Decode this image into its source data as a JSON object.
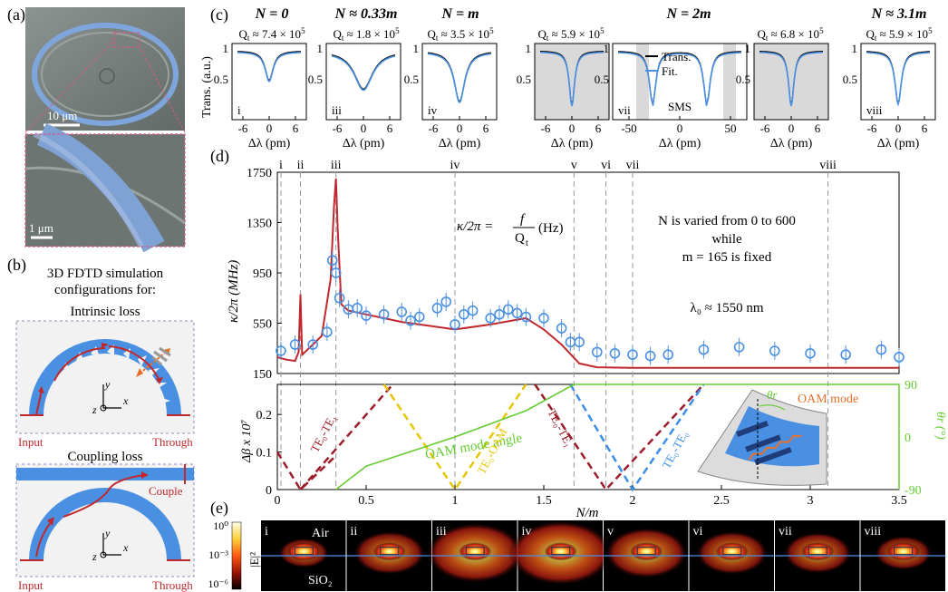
{
  "panel_letters": [
    "(a)",
    "(b)",
    "(c)",
    "(d)",
    "(e)"
  ],
  "panel_a": {
    "scale_top": "10 μm",
    "scale_bottom": "1 μm"
  },
  "panel_b": {
    "heading_line1": "3D FDTD simulation",
    "heading_line2": "configurations for:",
    "intrinsic_title": "Intrinsic loss",
    "coupling_title": "Coupling loss",
    "input_label": "Input",
    "through_label": "Through",
    "couple_label": "Couple",
    "axis_x": "x",
    "axis_y": "y",
    "axis_z": "z"
  },
  "panel_c": {
    "groups": [
      {
        "title": "N = 0",
        "q": "Q",
        "qsub": "t",
        "qval": " ≈ 7.4 × 10",
        "qexp": "5",
        "roman": "i"
      },
      {
        "title": "N ≈ 0.33m",
        "q": "Q",
        "qsub": "t",
        "qval": " ≈ 1.8 × 10",
        "qexp": "5",
        "roman": "iii"
      },
      {
        "title": "N = m",
        "q": "Q",
        "qsub": "t",
        "qval": " ≈ 3.5 × 10",
        "qexp": "5",
        "roman": "iv"
      },
      {
        "title": "N = 2m",
        "q": "Q",
        "qsub": "t",
        "qval": " ≈ 5.9 × 10",
        "qexp": "5",
        "roman": "vii"
      },
      {
        "title": "",
        "q": "Q",
        "qsub": "t",
        "qval": " ≈ 6.8 × 10",
        "qexp": "5",
        "roman": ""
      },
      {
        "title": "N ≈ 3.1m",
        "q": "Q",
        "qsub": "t",
        "qval": " ≈ 5.9 × 10",
        "qexp": "5",
        "roman": "viii"
      }
    ],
    "ylabel": "Trans. (a.u.)",
    "xlabel": "Δλ (pm)",
    "yticks": [
      "1",
      "0.5"
    ],
    "xticks_small": [
      "-6",
      "0",
      "6"
    ],
    "xticks_wide": [
      "-50",
      "0",
      "50"
    ],
    "legend_trans": "Trans.",
    "legend_fit": "Fit.",
    "sms_label": "SMS",
    "trans_color": "#000000",
    "fit_color": "#4a90e2"
  },
  "panel_d": {
    "ylabel": "κ/2π (MHz)",
    "yticks": [
      "150",
      "550",
      "950",
      "1350",
      "1750"
    ],
    "roman_markers": [
      {
        "label": "i",
        "x": 0.0
      },
      {
        "label": "ii",
        "x": 0.13
      },
      {
        "label": "iii",
        "x": 0.33
      },
      {
        "label": "iv",
        "x": 1.0
      },
      {
        "label": "v",
        "x": 1.67
      },
      {
        "label": "vi",
        "x": 1.85
      },
      {
        "label": "vii",
        "x": 2.0
      },
      {
        "label": "viii",
        "x": 3.1
      }
    ],
    "formula_lhs": "κ/2π =",
    "formula_num": "f",
    "formula_den": "Q",
    "formula_den_sub": "t",
    "formula_unit": "(Hz)",
    "note_line1": "N is varied from 0 to 600",
    "note_line2": "while",
    "note_line3": "m = 165 is fixed",
    "lambda_note": "λ₀ ≈ 1550 nm",
    "curve_color": "#c0282d",
    "marker_color": "#4a90e2"
  },
  "panel_d_lower": {
    "ylabel": "Δβ x 10⁷",
    "yticks": [
      "0",
      "0.1",
      "0.2"
    ],
    "xlabel": "N/m",
    "xticks": [
      "0",
      "0.5",
      "1",
      "1.5",
      "2",
      "2.5",
      "3",
      "3.5"
    ],
    "right_label": "θr (°)",
    "right_ticks": [
      "90",
      "0",
      "-90"
    ],
    "oam_label": "OAM mode angle",
    "oam_mode_label": "OAM mode",
    "theta_label": "θr",
    "line_labels": [
      "TE₀-TE₁",
      "TE₀-OAM",
      "TE₀-TE₁",
      "TE₀-TE₀"
    ],
    "oam_color": "#66cc33"
  },
  "panel_e": {
    "ylabel": "|E|²",
    "cb_ticks": [
      "10⁰",
      "10⁻³",
      "10⁻⁶"
    ],
    "air_label": "Air",
    "sio2_label": "SiO₂",
    "tiles": [
      "i",
      "ii",
      "iii",
      "iv",
      "v",
      "vi",
      "vii",
      "viii"
    ]
  },
  "chart_data": [
    {
      "type": "line",
      "title": "",
      "xlabel": "N/m",
      "ylabel": "κ/2π (MHz)",
      "xlim": [
        0,
        3.5
      ],
      "ylim": [
        150,
        1750
      ],
      "series": [
        {
          "name": "",
          "kind": "line",
          "x": [
            0.0,
            0.05,
            0.1,
            0.12,
            0.13,
            0.14,
            0.2,
            0.25,
            0.3,
            0.32,
            0.33,
            0.34,
            0.36,
            0.4,
            0.5,
            0.7,
            1.0,
            1.2,
            1.4,
            1.5,
            1.6,
            1.7,
            1.8,
            2.0,
            2.5,
            3.0,
            3.5
          ],
          "y": [
            280,
            260,
            250,
            320,
            780,
            300,
            380,
            450,
            900,
            1500,
            1700,
            1300,
            700,
            650,
            620,
            560,
            500,
            540,
            590,
            500,
            380,
            230,
            200,
            195,
            195,
            195,
            195
          ]
        },
        {
          "name": "",
          "kind": "scatter",
          "x": [
            0.02,
            0.1,
            0.2,
            0.28,
            0.31,
            0.33,
            0.35,
            0.4,
            0.45,
            0.5,
            0.6,
            0.7,
            0.75,
            0.8,
            0.9,
            0.95,
            1.0,
            1.05,
            1.1,
            1.2,
            1.25,
            1.3,
            1.35,
            1.4,
            1.5,
            1.6,
            1.65,
            1.7,
            1.8,
            1.9,
            2.0,
            2.1,
            2.2,
            2.4,
            2.6,
            2.8,
            3.0,
            3.2,
            3.4,
            3.5
          ],
          "y": [
            330,
            380,
            380,
            480,
            1050,
            950,
            750,
            660,
            670,
            610,
            620,
            640,
            570,
            600,
            670,
            720,
            540,
            620,
            650,
            590,
            620,
            660,
            630,
            600,
            590,
            510,
            400,
            400,
            320,
            310,
            300,
            290,
            300,
            340,
            360,
            330,
            310,
            300,
            340,
            280
          ]
        }
      ]
    },
    {
      "type": "line",
      "title": "",
      "xlabel": "N/m",
      "ylabel": "Δβ x 10⁷",
      "xlim": [
        0,
        3.5
      ],
      "ylim": [
        0,
        0.28
      ],
      "series": [
        {
          "name": "TE₀-TE₁",
          "x": [
            0,
            0.13,
            0.33
          ],
          "y": [
            0.1,
            0.0,
            0.09
          ]
        },
        {
          "name": "TE₀-TE₁ (rising)",
          "x": [
            0.13,
            0.65
          ],
          "y": [
            0.0,
            0.28
          ]
        },
        {
          "name": "TE₀-OAM",
          "x": [
            0.6,
            1.0,
            1.4
          ],
          "y": [
            0.28,
            0.0,
            0.28
          ]
        },
        {
          "name": "TE₀-TE₁",
          "x": [
            1.45,
            1.85,
            2.4
          ],
          "y": [
            0.28,
            0.0,
            0.28
          ]
        },
        {
          "name": "TE₀-TE₀",
          "x": [
            1.65,
            2.0,
            2.4
          ],
          "y": [
            0.28,
            0.0,
            0.28
          ]
        },
        {
          "name": "OAM mode angle",
          "axis": "right",
          "x": [
            0.33,
            0.5,
            1.0,
            1.4,
            1.67,
            1.7,
            3.5
          ],
          "y": [
            -90,
            -50,
            0,
            45,
            90,
            90,
            90
          ]
        }
      ]
    }
  ]
}
